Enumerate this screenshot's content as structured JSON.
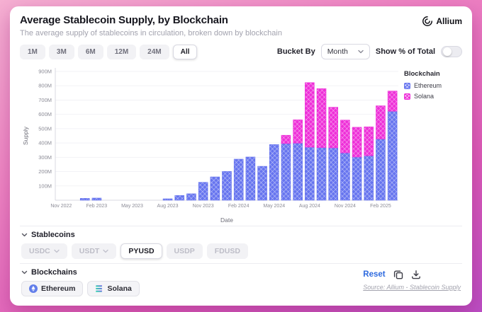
{
  "header": {
    "title": "Average Stablecoin Supply, by Blockchain",
    "subtitle": "The average supply of stablecoins in circulation, broken down by blockchain",
    "brand": "Allium"
  },
  "controls": {
    "ranges": [
      "1M",
      "3M",
      "6M",
      "12M",
      "24M",
      "All"
    ],
    "active_range": "All",
    "bucket_by_label": "Bucket By",
    "bucket_value": "Month",
    "show_pct_label": "Show % of Total",
    "show_pct_on": false
  },
  "chart_data": {
    "type": "bar",
    "stacked": true,
    "xlabel": "Date",
    "ylabel": "Supply",
    "legend_title": "Blockchain",
    "ylim": [
      0,
      900
    ],
    "ytick_values": [
      100,
      200,
      300,
      400,
      500,
      600,
      700,
      800,
      900
    ],
    "ytick_suffix": "M",
    "x_tick_interval": 3,
    "unit": "M (millions of USD)",
    "categories": [
      "Nov 2022",
      "Dec 2022",
      "Jan 2023",
      "Feb 2023",
      "Mar 2023",
      "Apr 2023",
      "May 2023",
      "Jun 2023",
      "Jul 2023",
      "Aug 2023",
      "Sep 2023",
      "Oct 2023",
      "Nov 2023",
      "Dec 2023",
      "Jan 2024",
      "Feb 2024",
      "Mar 2024",
      "Apr 2024",
      "May 2024",
      "Jun 2024",
      "Jul 2024",
      "Aug 2024",
      "Sep 2024",
      "Oct 2024",
      "Nov 2024",
      "Dec 2024",
      "Jan 2025",
      "Feb 2025",
      "Mar 2025"
    ],
    "series": [
      {
        "name": "Ethereum",
        "color": "#6674ef",
        "values": [
          0,
          0,
          13,
          15,
          0,
          0,
          0,
          0,
          0,
          10,
          33,
          45,
          125,
          163,
          201,
          287,
          302,
          237,
          389,
          396,
          399,
          371,
          368,
          366,
          331,
          302,
          311,
          428,
          622
        ]
      },
      {
        "name": "Solana",
        "color": "#ee2fd8",
        "values": [
          0,
          0,
          0,
          0,
          0,
          0,
          0,
          0,
          0,
          0,
          0,
          0,
          0,
          0,
          0,
          0,
          0,
          0,
          0,
          58,
          163,
          451,
          412,
          284,
          229,
          208,
          202,
          232,
          141
        ]
      }
    ]
  },
  "filters": {
    "stablecoins_label": "Stablecoins",
    "stablecoins": [
      {
        "label": "USDC",
        "selected": false,
        "chevron": true
      },
      {
        "label": "USDT",
        "selected": false,
        "chevron": true
      },
      {
        "label": "PYUSD",
        "selected": true,
        "chevron": false
      },
      {
        "label": "USDP",
        "selected": false,
        "chevron": false
      },
      {
        "label": "FDUSD",
        "selected": false,
        "chevron": false
      }
    ],
    "blockchains_label": "Blockchains",
    "blockchains": [
      {
        "label": "Ethereum",
        "icon": "ethereum-icon"
      },
      {
        "label": "Solana",
        "icon": "solana-icon"
      }
    ],
    "reset_label": "Reset"
  },
  "footer": {
    "source": "Source: Allium - Stablecoin Supply"
  },
  "colors": {
    "ethereum": "#6674ef",
    "solana": "#ee2fd8",
    "link": "#2f6bdf"
  }
}
